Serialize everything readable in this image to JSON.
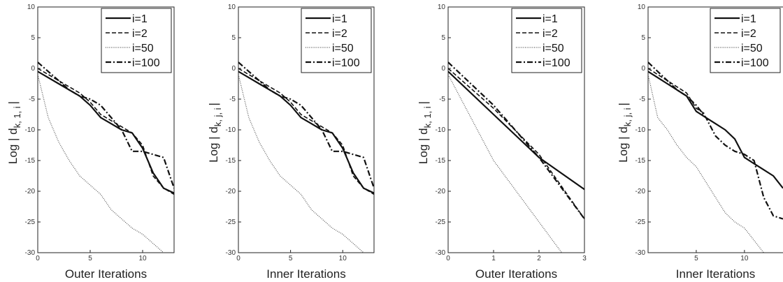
{
  "chart_data": [
    {
      "type": "line",
      "xlabel": "Outer Iterations",
      "ylabel": "Log  | d",
      "ylabel_sub": "k, 1, i",
      "ylabel_end": "|",
      "xlim": [
        0,
        13
      ],
      "ylim": [
        -30,
        10
      ],
      "xticks": [
        0,
        5,
        10
      ],
      "yticks": [
        10,
        5,
        0,
        -5,
        -10,
        -15,
        -20,
        -25,
        -30
      ],
      "legend": "top-right",
      "series": [
        {
          "name": "i=1",
          "style": "solid",
          "x": [
            0,
            1,
            2,
            3,
            4,
            5,
            6,
            7,
            8,
            9,
            10,
            11,
            12,
            13
          ],
          "y": [
            -0.5,
            -1.5,
            -2.5,
            -3.5,
            -4.5,
            -6,
            -8,
            -9,
            -10,
            -10.5,
            -13,
            -17,
            -19.5,
            -20.3
          ]
        },
        {
          "name": "i=2",
          "style": "dashed",
          "x": [
            0,
            1,
            2,
            3,
            4,
            5,
            6,
            7,
            8,
            9,
            10,
            11,
            12,
            13
          ],
          "y": [
            0,
            -1,
            -2,
            -3,
            -4,
            -5.5,
            -7.5,
            -8.5,
            -9.5,
            -10.5,
            -12.5,
            -17.5,
            -19.5,
            -20.5
          ]
        },
        {
          "name": "i=50",
          "style": "dotted",
          "x": [
            0,
            1,
            2,
            3,
            4,
            5,
            6,
            7,
            8,
            9,
            10,
            11,
            12
          ],
          "y": [
            -1,
            -8,
            -12,
            -15,
            -17.5,
            -19,
            -20.5,
            -23,
            -24.5,
            -26,
            -27,
            -28.5,
            -30
          ]
        },
        {
          "name": "i=100",
          "style": "dashdot",
          "x": [
            0,
            1,
            2,
            3,
            4,
            5,
            6,
            7,
            8,
            9,
            10,
            11,
            12,
            13
          ],
          "y": [
            1,
            -0.5,
            -2,
            -3.5,
            -4.5,
            -5,
            -6,
            -8,
            -10,
            -13.5,
            -13.5,
            -14,
            -14.5,
            -19.5
          ]
        }
      ]
    },
    {
      "type": "line",
      "xlabel": "Inner Iterations",
      "ylabel": "Log  | d",
      "ylabel_sub": "k, j, i",
      "ylabel_end": "|",
      "xlim": [
        0,
        13
      ],
      "ylim": [
        -30,
        10
      ],
      "xticks": [
        0,
        5,
        10
      ],
      "yticks": [
        10,
        5,
        0,
        -5,
        -10,
        -15,
        -20,
        -25,
        -30
      ],
      "legend": "top-right",
      "series": [
        {
          "name": "i=1",
          "style": "solid",
          "x": [
            0,
            1,
            2,
            3,
            4,
            5,
            6,
            7,
            8,
            9,
            10,
            11,
            12,
            13
          ],
          "y": [
            -0.5,
            -1.5,
            -2.5,
            -3.5,
            -4.5,
            -6,
            -8,
            -9,
            -10,
            -10.5,
            -13,
            -17,
            -19.5,
            -20.3
          ]
        },
        {
          "name": "i=2",
          "style": "dashed",
          "x": [
            0,
            1,
            2,
            3,
            4,
            5,
            6,
            7,
            8,
            9,
            10,
            11,
            12,
            13
          ],
          "y": [
            0,
            -1,
            -2,
            -3,
            -4,
            -5.5,
            -7.5,
            -8.5,
            -9.5,
            -10.5,
            -12.5,
            -17.5,
            -19.5,
            -20.5
          ]
        },
        {
          "name": "i=50",
          "style": "dotted",
          "x": [
            0,
            1,
            2,
            3,
            4,
            5,
            6,
            7,
            8,
            9,
            10,
            11,
            12
          ],
          "y": [
            -1,
            -8,
            -12,
            -15,
            -17.5,
            -19,
            -20.5,
            -23,
            -24.5,
            -26,
            -27,
            -28.5,
            -30
          ]
        },
        {
          "name": "i=100",
          "style": "dashdot",
          "x": [
            0,
            1,
            2,
            3,
            4,
            5,
            6,
            7,
            8,
            9,
            10,
            11,
            12,
            13
          ],
          "y": [
            1,
            -0.5,
            -2,
            -3.5,
            -4.5,
            -5,
            -6,
            -8,
            -10,
            -13.5,
            -13.5,
            -14,
            -14.5,
            -19.5
          ]
        }
      ]
    },
    {
      "type": "line",
      "xlabel": "Outer Iterations",
      "ylabel": "Log  | d",
      "ylabel_sub": "k, 1, i",
      "ylabel_end": "|",
      "xlim": [
        0,
        3
      ],
      "ylim": [
        -30,
        10
      ],
      "xticks": [
        0,
        1,
        2,
        3
      ],
      "yticks": [
        10,
        5,
        0,
        -5,
        -10,
        -15,
        -20,
        -25,
        -30
      ],
      "legend": "top-right",
      "series": [
        {
          "name": "i=1",
          "style": "solid",
          "x": [
            0,
            1,
            2,
            3
          ],
          "y": [
            -0.5,
            -7.5,
            -14.5,
            -19.7
          ]
        },
        {
          "name": "i=2",
          "style": "dashed",
          "x": [
            0,
            1,
            2,
            3
          ],
          "y": [
            0,
            -6.5,
            -14,
            -24.5
          ]
        },
        {
          "name": "i=50",
          "style": "dotted",
          "x": [
            0,
            1,
            2,
            2.5
          ],
          "y": [
            -1,
            -15,
            -25,
            -30
          ]
        },
        {
          "name": "i=100",
          "style": "dashdot",
          "x": [
            0,
            1,
            2,
            3
          ],
          "y": [
            1,
            -6,
            -14.5,
            -24.5
          ]
        }
      ]
    },
    {
      "type": "line",
      "xlabel": "Inner Iterations",
      "ylabel": "Log  | d",
      "ylabel_sub": "k, j, i",
      "ylabel_end": "|",
      "xlim": [
        0,
        14
      ],
      "ylim": [
        -30,
        10
      ],
      "xticks": [
        5,
        10
      ],
      "yticks": [
        10,
        5,
        0,
        -5,
        -10,
        -15,
        -20,
        -25,
        -30
      ],
      "legend": "top-right",
      "series": [
        {
          "name": "i=1",
          "style": "solid",
          "x": [
            0,
            1,
            2,
            3,
            4,
            5,
            6,
            7,
            8,
            9,
            10,
            11,
            12,
            13,
            14
          ],
          "y": [
            -0.5,
            -1.5,
            -2.5,
            -3.5,
            -4.5,
            -7,
            -8,
            -9,
            -10,
            -11.5,
            -14.5,
            -15.5,
            -16.5,
            -17.5,
            -19.5
          ]
        },
        {
          "name": "i=2",
          "style": "dashed",
          "x": [
            0,
            1,
            2,
            3,
            4,
            5,
            6
          ],
          "y": [
            0,
            -1,
            -2,
            -3,
            -4,
            -6.5,
            -7.5
          ]
        },
        {
          "name": "i=50",
          "style": "dotted",
          "x": [
            0,
            1,
            2,
            3,
            4,
            5,
            6,
            7,
            8,
            9,
            10,
            11,
            12
          ],
          "y": [
            -1,
            -8,
            -10,
            -12.5,
            -14.5,
            -16,
            -18.5,
            -21,
            -23.5,
            -25,
            -26,
            -28,
            -30
          ]
        },
        {
          "name": "i=100",
          "style": "dashdot",
          "x": [
            0,
            1,
            2,
            3,
            4,
            5,
            6,
            7,
            8,
            9,
            10,
            11,
            12,
            13,
            14
          ],
          "y": [
            1,
            -0.5,
            -2,
            -3.5,
            -4.5,
            -6,
            -8,
            -11,
            -12.5,
            -13.5,
            -14,
            -15,
            -21,
            -24,
            -24.5
          ]
        }
      ]
    }
  ]
}
